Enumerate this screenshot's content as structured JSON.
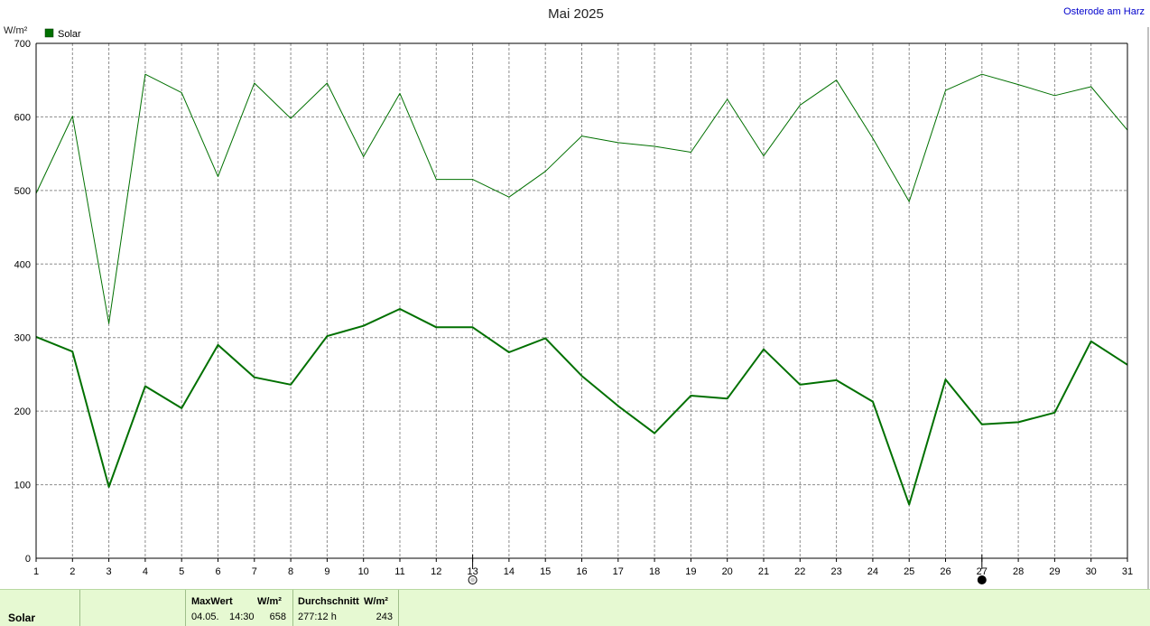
{
  "chart_data": {
    "type": "line",
    "title": "Mai 2025",
    "location": "Osterode am Harz",
    "ylabel": "W/m²",
    "ylim": [
      0,
      700
    ],
    "yticks": [
      0,
      100,
      200,
      300,
      400,
      500,
      600,
      700
    ],
    "x": [
      1,
      2,
      3,
      4,
      5,
      6,
      7,
      8,
      9,
      10,
      11,
      12,
      13,
      14,
      15,
      16,
      17,
      18,
      19,
      20,
      21,
      22,
      23,
      24,
      25,
      26,
      27,
      28,
      29,
      30,
      31
    ],
    "grid": true,
    "legend": {
      "placement": "top-left",
      "label": "Solar",
      "color": "#007000"
    },
    "series": [
      {
        "name": "Solar",
        "role": "daily-max",
        "color": "#007000",
        "values": [
          496,
          601,
          319,
          658,
          633,
          519,
          646,
          598,
          646,
          546,
          632,
          515,
          515,
          491,
          526,
          574,
          565,
          560,
          552,
          624,
          547,
          616,
          650,
          571,
          485,
          636,
          658,
          644,
          629,
          641,
          582
        ]
      },
      {
        "name": "Solar",
        "role": "daily-mean",
        "color": "#007000",
        "values": [
          301,
          281,
          97,
          234,
          204,
          290,
          246,
          236,
          302,
          316,
          339,
          314,
          314,
          280,
          299,
          248,
          207,
          170,
          221,
          217,
          284,
          236,
          242,
          213,
          73,
          243,
          182,
          185,
          198,
          295,
          263
        ]
      }
    ],
    "markers": [
      {
        "day": 13,
        "symbol": "full-moon",
        "icon": "full-moon-icon"
      },
      {
        "day": 27,
        "symbol": "new-moon",
        "icon": "new-moon-icon"
      }
    ]
  },
  "footer": {
    "series_name": "Solar",
    "max_header": "MaxWert",
    "max_unit": "W/m²",
    "max_date": "04.05.",
    "max_time": "14:30",
    "max_value": "658",
    "avg_header": "Durchschnitt",
    "avg_unit": "W/m²",
    "avg_duration": "277:12 h",
    "avg_value": "243"
  }
}
